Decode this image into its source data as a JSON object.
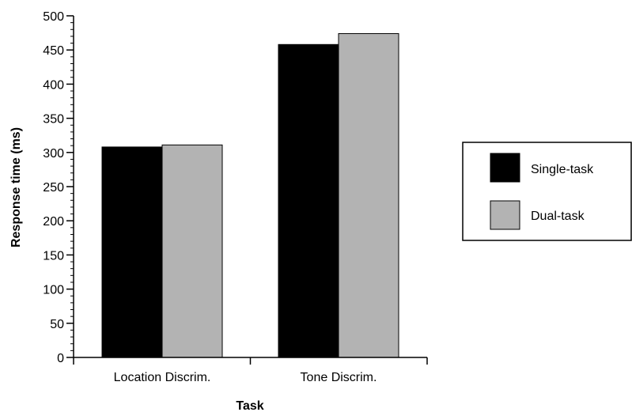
{
  "chart_data": {
    "type": "bar",
    "categories": [
      "Location Discrim.",
      "Tone Discrim."
    ],
    "series": [
      {
        "name": "Single-task",
        "values": [
          308,
          458
        ],
        "color": "#000000"
      },
      {
        "name": "Dual-task",
        "values": [
          311,
          474
        ],
        "color": "#b3b3b3"
      }
    ],
    "xlabel": "Task",
    "ylabel": "Response time (ms)",
    "ylim": [
      0,
      500
    ],
    "yticks": [
      0,
      50,
      100,
      150,
      200,
      250,
      300,
      350,
      400,
      450,
      500
    ],
    "ytick_labels": [
      "0",
      "50",
      "100",
      "150",
      "200",
      "250",
      "300",
      "350",
      "400",
      "450",
      "500"
    ],
    "grid": false,
    "legend_position": "right"
  }
}
